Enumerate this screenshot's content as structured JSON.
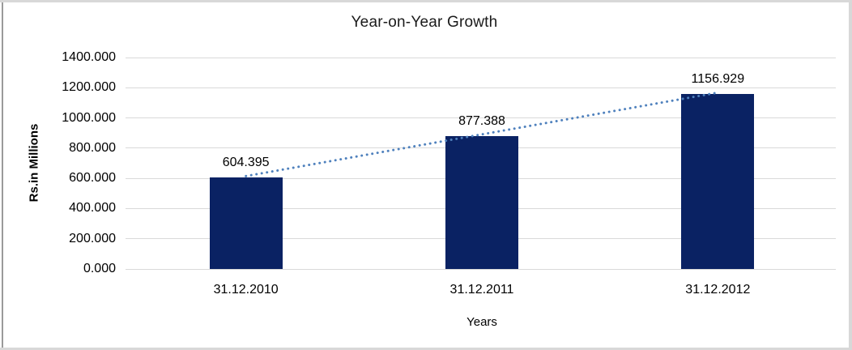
{
  "chart_data": {
    "type": "bar",
    "title": "Year-on-Year Growth",
    "xlabel": "Years",
    "ylabel": "Rs.in Millions",
    "categories": [
      "31.12.2010",
      "31.12.2011",
      "31.12.2012"
    ],
    "values": [
      604.395,
      877.388,
      1156.929
    ],
    "value_labels": [
      "604.395",
      "877.388",
      "1156.929"
    ],
    "ylim": [
      0,
      1400
    ],
    "ytick_step": 200,
    "ytick_labels": [
      "0.000",
      "200.000",
      "400.000",
      "600.000",
      "800.000",
      "1000.000",
      "1200.000",
      "1400.000"
    ],
    "grid": true,
    "legend": "none",
    "bar_color": "#0a2263",
    "gridline_color": "#d9d9d9",
    "trendline": {
      "type": "linear",
      "style": "dotted",
      "color": "#4f81bd"
    }
  }
}
